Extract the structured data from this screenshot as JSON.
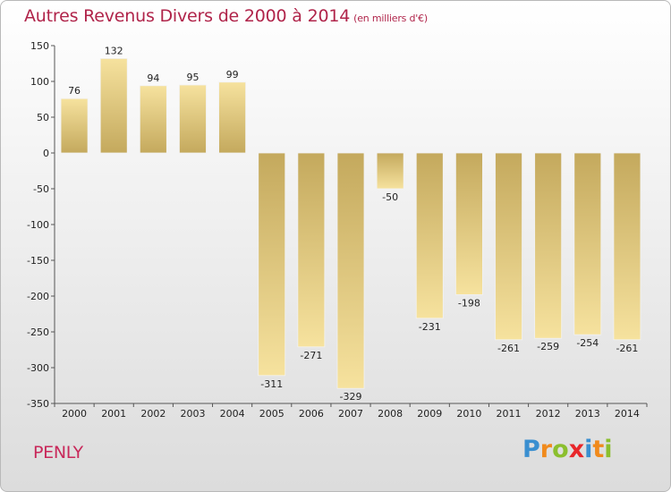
{
  "chart_data": {
    "type": "bar",
    "title": "Autres Revenus Divers de 2000 à 2014",
    "unit_label": "(en milliers d'€)",
    "categories": [
      "2000",
      "2001",
      "2002",
      "2003",
      "2004",
      "2005",
      "2006",
      "2007",
      "2008",
      "2009",
      "2010",
      "2011",
      "2012",
      "2013",
      "2014"
    ],
    "values": [
      76,
      132,
      94,
      95,
      99,
      -311,
      -271,
      -329,
      -50,
      -231,
      -198,
      -261,
      -259,
      -254,
      -261
    ],
    "ylim": [
      -350,
      150
    ],
    "yticks": [
      150,
      100,
      50,
      0,
      -50,
      -100,
      -150,
      -200,
      -250,
      -300,
      -350
    ],
    "grid": false
  },
  "commune": "PENLY",
  "logo": {
    "text": "Proxiti",
    "letters": [
      {
        "ch": "P",
        "color": "#3a8fd0"
      },
      {
        "ch": "r",
        "color": "#f08a1c"
      },
      {
        "ch": "o",
        "color": "#8bbf2e"
      },
      {
        "ch": "x",
        "color": "#e8262a"
      },
      {
        "ch": "i",
        "color": "#3a8fd0"
      },
      {
        "ch": "t",
        "color": "#f08a1c"
      },
      {
        "ch": "i",
        "color": "#8bbf2e"
      }
    ]
  },
  "colors": {
    "title": "#b0244a",
    "bar_dark": "#c4a95d",
    "bar_light": "#f6e29e"
  }
}
